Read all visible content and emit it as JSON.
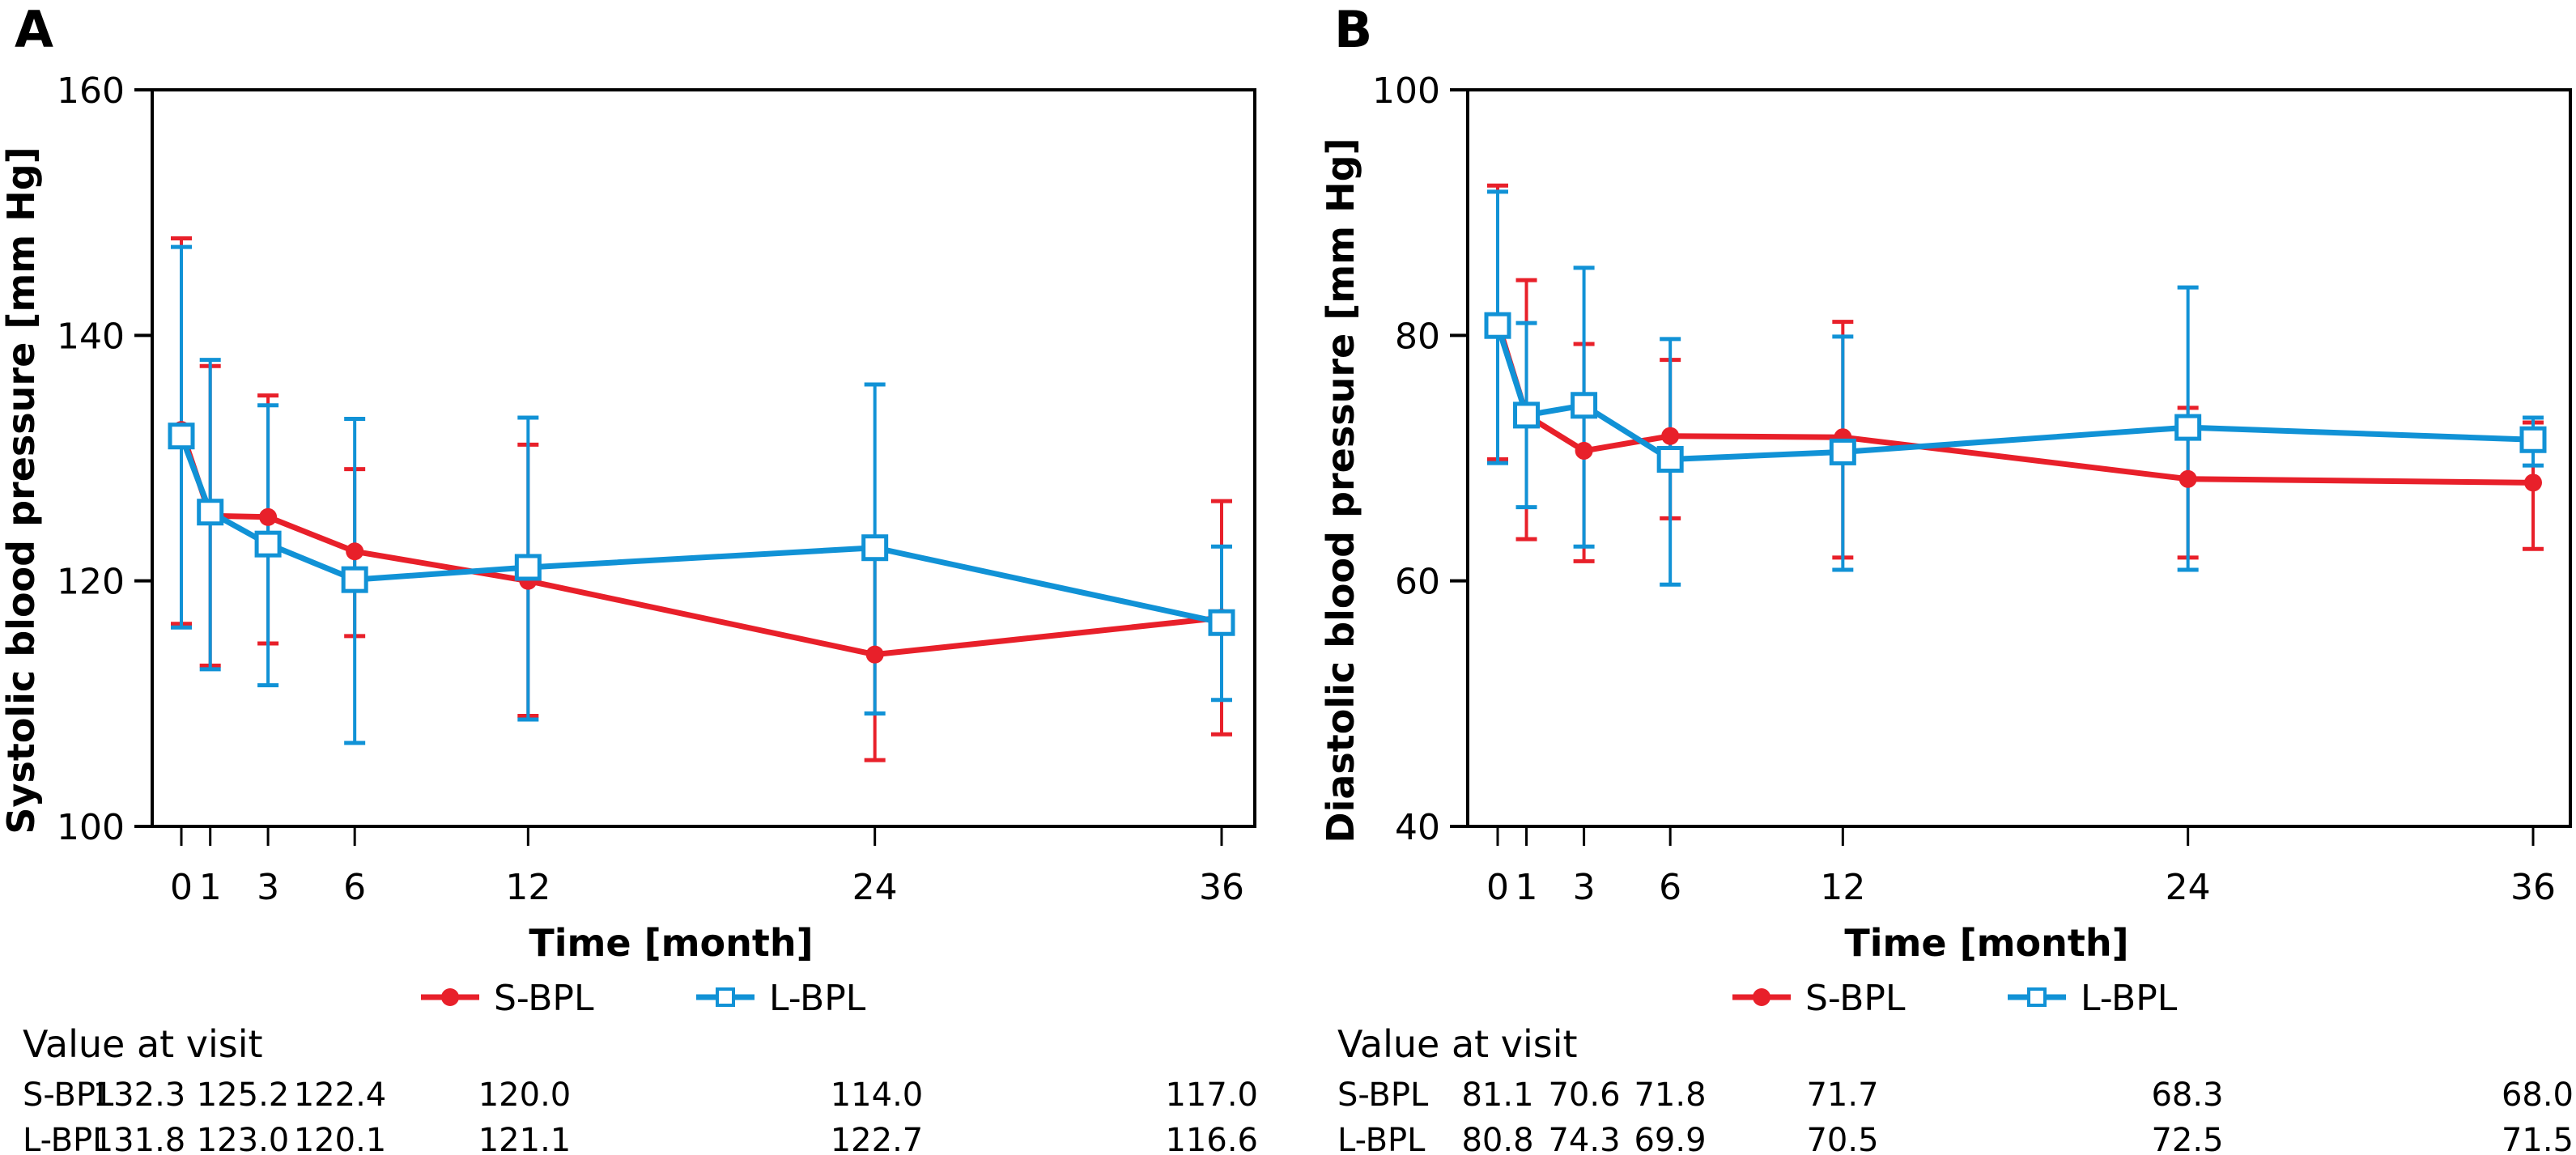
{
  "colors": {
    "s_bpl": "#e8202a",
    "l_bpl": "#1192d6",
    "axis": "#000000"
  },
  "chart_data": [
    {
      "panel": "A",
      "type": "line",
      "ylabel": "Systolic blood pressure [mm Hg]",
      "xlabel": "Time [month]",
      "ylim": [
        100,
        160
      ],
      "yticks": [
        100,
        120,
        140,
        160
      ],
      "x": [
        0,
        1,
        3,
        6,
        12,
        24,
        36
      ],
      "xtick_labels": [
        "0",
        "1",
        "3",
        "6",
        "12",
        "24",
        "36"
      ],
      "xlim": [
        0,
        36
      ],
      "grid": false,
      "legend_position": "bottom-center",
      "series": [
        {
          "name": "S-BPL",
          "marker": "filled-circle",
          "values": [
            132.3,
            125.3,
            125.2,
            122.4,
            120.0,
            114.0,
            117.0
          ],
          "error_upper": [
            147.9,
            137.5,
            135.1,
            129.1,
            131.1,
            123.4,
            126.5
          ],
          "error_lower": [
            116.5,
            113.1,
            114.9,
            115.5,
            109.0,
            105.4,
            107.5
          ]
        },
        {
          "name": "L-BPL",
          "marker": "open-square",
          "values": [
            131.8,
            125.6,
            123.0,
            120.1,
            121.1,
            122.7,
            116.6
          ],
          "error_upper": [
            147.2,
            138.0,
            134.3,
            133.2,
            133.3,
            136.0,
            122.8
          ],
          "error_lower": [
            116.2,
            112.8,
            111.5,
            106.8,
            108.7,
            109.2,
            110.3
          ]
        }
      ],
      "table": {
        "title": "Value at visit",
        "visits": [
          0,
          3,
          6,
          12,
          24,
          36
        ],
        "rows": [
          {
            "label": "S-BPL",
            "values": [
              "132.3",
              "125.2",
              "122.4",
              "120.0",
              "114.0",
              "117.0"
            ]
          },
          {
            "label": "L-BPL",
            "values": [
              "131.8",
              "123.0",
              "120.1",
              "121.1",
              "122.7",
              "116.6"
            ]
          }
        ]
      }
    },
    {
      "panel": "B",
      "type": "line",
      "ylabel": "Diastolic blood pressure [mm Hg]",
      "xlabel": "Time [month]",
      "ylim": [
        40,
        100
      ],
      "yticks": [
        40,
        60,
        80,
        100
      ],
      "x": [
        0,
        1,
        3,
        6,
        12,
        24,
        36
      ],
      "xtick_labels": [
        "0",
        "1",
        "3",
        "6",
        "12",
        "24",
        "36"
      ],
      "xlim": [
        0,
        36
      ],
      "grid": false,
      "legend_position": "bottom-center",
      "series": [
        {
          "name": "S-BPL",
          "marker": "filled-circle",
          "values": [
            81.1,
            73.5,
            70.6,
            71.8,
            71.7,
            68.3,
            68.0
          ],
          "error_upper": [
            92.2,
            84.5,
            79.3,
            78.0,
            81.1,
            74.1,
            72.9
          ],
          "error_lower": [
            69.9,
            63.4,
            61.6,
            65.1,
            61.9,
            61.9,
            62.6
          ]
        },
        {
          "name": "L-BPL",
          "marker": "open-square",
          "values": [
            80.8,
            73.5,
            74.3,
            69.9,
            70.5,
            72.5,
            71.5
          ],
          "error_upper": [
            91.7,
            81.0,
            85.5,
            79.7,
            79.9,
            83.9,
            73.3
          ],
          "error_lower": [
            69.6,
            66.0,
            62.8,
            59.7,
            60.9,
            60.9,
            69.4
          ]
        }
      ],
      "table": {
        "title": "Value at visit",
        "visits": [
          0,
          3,
          6,
          12,
          24,
          36
        ],
        "rows": [
          {
            "label": "S-BPL",
            "values": [
              "81.1",
              "70.6",
              "71.8",
              "71.7",
              "68.3",
              "68.0"
            ]
          },
          {
            "label": "L-BPL",
            "values": [
              "80.8",
              "74.3",
              "69.9",
              "70.5",
              "72.5",
              "71.5"
            ]
          }
        ]
      }
    }
  ]
}
